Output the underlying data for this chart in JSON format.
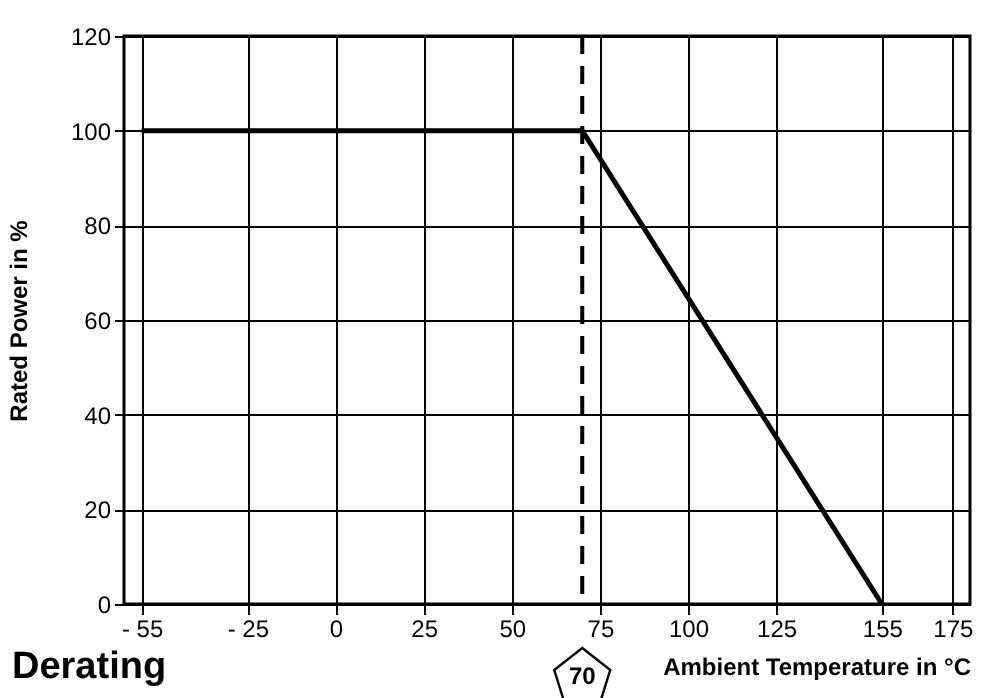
{
  "chart_data": {
    "type": "line",
    "title": "Derating",
    "xlabel": "Ambient Temperature in °C",
    "ylabel": "Rated Power in %",
    "x": [
      -55,
      70,
      155
    ],
    "series": [
      {
        "color": "#000000",
        "values": [
          100,
          100,
          0
        ]
      }
    ],
    "xlim": [
      -60,
      180
    ],
    "ylim": [
      0,
      120
    ],
    "xticks": [
      {
        "value": -55,
        "label": "- 55"
      },
      {
        "value": -25,
        "label": "- 25"
      },
      0,
      25,
      50,
      75,
      100,
      125,
      155,
      175
    ],
    "yticks": [
      0,
      20,
      40,
      60,
      80,
      100,
      120
    ],
    "grid": true,
    "marker": "none",
    "line_style": "solid",
    "ref_lines": [
      {
        "axis": "x",
        "value": 70,
        "label": "70",
        "line_style": "dashed",
        "color": "#000000"
      }
    ]
  }
}
